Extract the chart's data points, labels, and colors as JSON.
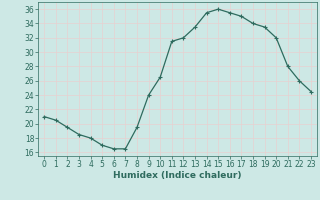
{
  "x": [
    0,
    1,
    2,
    3,
    4,
    5,
    6,
    7,
    8,
    9,
    10,
    11,
    12,
    13,
    14,
    15,
    16,
    17,
    18,
    19,
    20,
    21,
    22,
    23
  ],
  "y": [
    21,
    20.5,
    19.5,
    18.5,
    18,
    17,
    16.5,
    16.5,
    19.5,
    24,
    26.5,
    31.5,
    32,
    33.5,
    35.5,
    36,
    35.5,
    35,
    34,
    33.5,
    32,
    28,
    26,
    24.5
  ],
  "line_color": "#2E6B5E",
  "marker": "+",
  "marker_size": 3,
  "xlabel": "Humidex (Indice chaleur)",
  "xlim": [
    -0.5,
    23.5
  ],
  "ylim": [
    15.5,
    37
  ],
  "yticks": [
    16,
    18,
    20,
    22,
    24,
    26,
    28,
    30,
    32,
    34,
    36
  ],
  "xticks": [
    0,
    1,
    2,
    3,
    4,
    5,
    6,
    7,
    8,
    9,
    10,
    11,
    12,
    13,
    14,
    15,
    16,
    17,
    18,
    19,
    20,
    21,
    22,
    23
  ],
  "bg_color": "#cde8e5",
  "grid_color": "#e8d0d0",
  "text_color": "#2E6B5E",
  "fig_bg": "#cde8e5",
  "tick_fontsize": 5.5,
  "xlabel_fontsize": 6.5,
  "linewidth": 0.9,
  "markeredgewidth": 0.8
}
